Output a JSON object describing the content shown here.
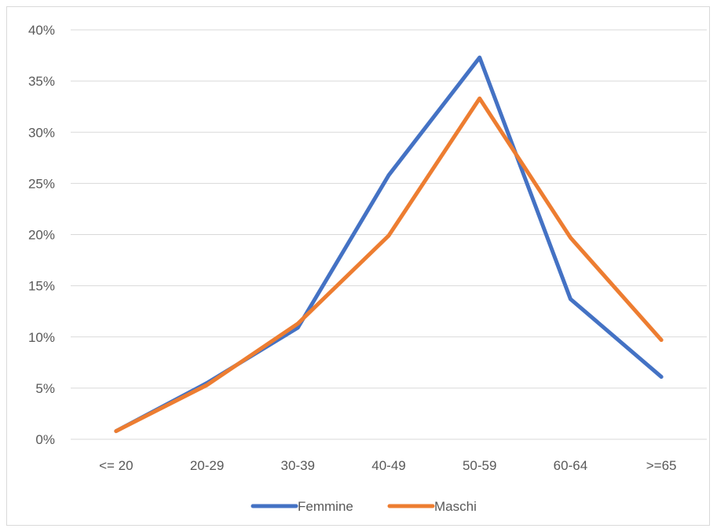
{
  "chart_data": {
    "type": "line",
    "categories": [
      "<= 20",
      "20-29",
      "30-39",
      "40-49",
      "50-59",
      "60-64",
      ">=65"
    ],
    "series": [
      {
        "name": "Femmine",
        "color": "#4472C4",
        "values": [
          0.008,
          0.055,
          0.109,
          0.258,
          0.373,
          0.137,
          0.061
        ]
      },
      {
        "name": "Maschi",
        "color": "#ED7D31",
        "values": [
          0.008,
          0.053,
          0.113,
          0.199,
          0.333,
          0.197,
          0.097
        ]
      }
    ],
    "y_ticks": [
      "0%",
      "5%",
      "10%",
      "15%",
      "20%",
      "25%",
      "30%",
      "35%",
      "40%"
    ],
    "ylim": [
      0,
      0.4
    ],
    "title": "",
    "xlabel": "",
    "ylabel": "",
    "grid": "horizontal",
    "legend_position": "bottom"
  }
}
